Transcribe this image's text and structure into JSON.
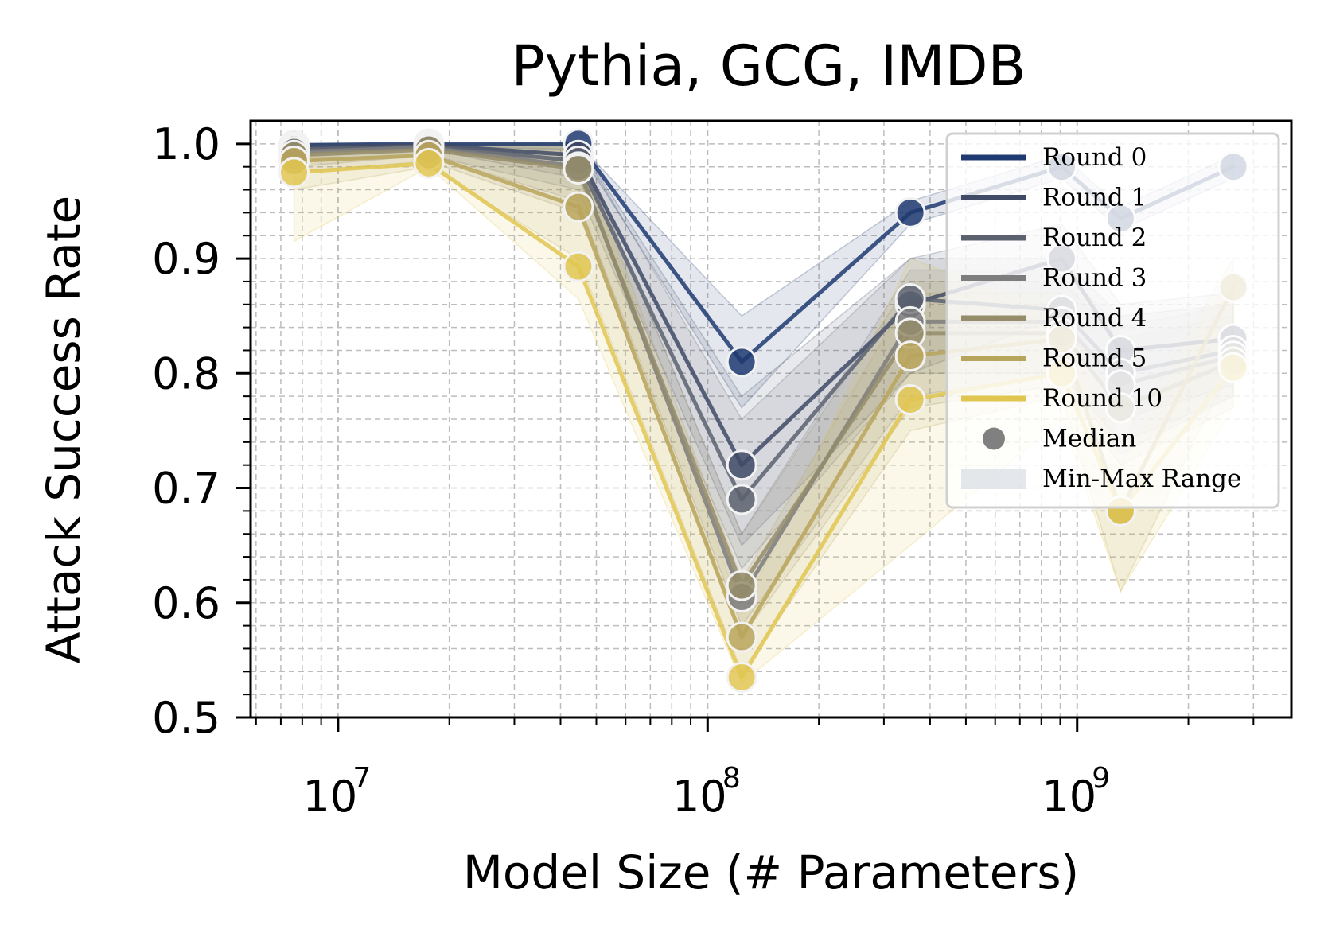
{
  "chart_data": {
    "type": "line",
    "title": "Pythia, GCG, IMDB",
    "xlabel": "Model Size (# Parameters)",
    "ylabel": "Attack Success Rate",
    "xscale": "log",
    "xlim": [
      5800000,
      3800000000
    ],
    "ylim": [
      0.5,
      1.02
    ],
    "grid": true,
    "legend_position": "upper-right",
    "x": [
      7600000,
      17600000,
      44700000,
      123700000,
      353800000,
      908800000,
      1311600000,
      2646100000
    ],
    "x_ticks": [
      {
        "value": 10000000,
        "base": "10",
        "exp": "7"
      },
      {
        "value": 100000000,
        "base": "10",
        "exp": "8"
      },
      {
        "value": 1000000000,
        "base": "10",
        "exp": "9"
      }
    ],
    "y_ticks": [
      {
        "value": 0.5,
        "label": "0.5"
      },
      {
        "value": 0.6,
        "label": "0.6"
      },
      {
        "value": 0.7,
        "label": "0.7"
      },
      {
        "value": 0.8,
        "label": "0.8"
      },
      {
        "value": 0.9,
        "label": "0.9"
      },
      {
        "value": 1.0,
        "label": "1.0"
      }
    ],
    "series": [
      {
        "name": "Round 0",
        "color": "#1f3a70",
        "alpha": 0.85,
        "values": [
          0.999,
          1.0,
          1.0,
          0.81,
          0.94,
          0.98,
          0.935,
          0.98
        ],
        "min": [
          0.995,
          0.998,
          0.995,
          0.77,
          0.93,
          0.97,
          0.925,
          0.97
        ],
        "max": [
          1.0,
          1.0,
          1.0,
          0.85,
          0.95,
          0.99,
          0.945,
          0.99
        ]
      },
      {
        "name": "Round 1",
        "color": "#3f4a66",
        "alpha": 0.85,
        "values": [
          0.997,
          0.999,
          0.99,
          0.72,
          0.86,
          0.9,
          0.82,
          0.83
        ],
        "min": [
          0.99,
          0.995,
          0.97,
          0.65,
          0.8,
          0.85,
          0.76,
          0.79
        ],
        "max": [
          1.0,
          1.0,
          1.0,
          0.78,
          0.9,
          0.93,
          0.86,
          0.87
        ]
      },
      {
        "name": "Round 2",
        "color": "#5c6170",
        "alpha": 0.85,
        "values": [
          0.995,
          0.998,
          0.985,
          0.69,
          0.865,
          0.855,
          0.8,
          0.82
        ],
        "min": [
          0.985,
          0.99,
          0.96,
          0.63,
          0.8,
          0.8,
          0.74,
          0.78
        ],
        "max": [
          1.0,
          1.0,
          1.0,
          0.76,
          0.9,
          0.9,
          0.85,
          0.86
        ]
      },
      {
        "name": "Round 3",
        "color": "#7d7d7d",
        "alpha": 0.85,
        "values": [
          0.993,
          0.997,
          0.98,
          0.605,
          0.845,
          0.845,
          0.79,
          0.815
        ],
        "min": [
          0.98,
          0.99,
          0.95,
          0.58,
          0.78,
          0.8,
          0.73,
          0.78
        ],
        "max": [
          1.0,
          1.0,
          1.0,
          0.66,
          0.89,
          0.89,
          0.84,
          0.86
        ]
      },
      {
        "name": "Round 4",
        "color": "#958c6a",
        "alpha": 0.85,
        "values": [
          0.99,
          0.995,
          0.978,
          0.615,
          0.835,
          0.835,
          0.77,
          0.81
        ],
        "min": [
          0.975,
          0.985,
          0.94,
          0.57,
          0.77,
          0.79,
          0.72,
          0.77
        ],
        "max": [
          1.0,
          1.0,
          1.0,
          0.66,
          0.88,
          0.88,
          0.83,
          0.85
        ]
      },
      {
        "name": "Round 5",
        "color": "#b8a55c",
        "alpha": 0.85,
        "values": [
          0.985,
          0.99,
          0.945,
          0.57,
          0.815,
          0.83,
          0.68,
          0.875
        ],
        "min": [
          0.96,
          0.98,
          0.9,
          0.54,
          0.75,
          0.78,
          0.61,
          0.81
        ],
        "max": [
          1.0,
          1.0,
          1.0,
          0.62,
          0.87,
          0.87,
          0.74,
          0.9
        ]
      },
      {
        "name": "Round 10",
        "color": "#e0c651",
        "alpha": 0.85,
        "values": [
          0.975,
          0.983,
          0.893,
          0.535,
          0.777,
          0.8,
          0.68,
          0.805
        ],
        "min": [
          0.915,
          0.98,
          0.865,
          0.53,
          0.65,
          0.76,
          0.61,
          0.77
        ],
        "max": [
          1.0,
          1.0,
          1.0,
          0.59,
          0.9,
          0.85,
          0.72,
          0.89
        ]
      }
    ],
    "legend": [
      {
        "label": "Round 0",
        "kind": "line",
        "color": "#1f3a70"
      },
      {
        "label": "Round 1",
        "kind": "line",
        "color": "#3f4a66"
      },
      {
        "label": "Round 2",
        "kind": "line",
        "color": "#5c6170"
      },
      {
        "label": "Round 3",
        "kind": "line",
        "color": "#7d7d7d"
      },
      {
        "label": "Round 4",
        "kind": "line",
        "color": "#958c6a"
      },
      {
        "label": "Round 5",
        "kind": "line",
        "color": "#b8a55c"
      },
      {
        "label": "Round 10",
        "kind": "line",
        "color": "#e0c651"
      },
      {
        "label": "Median",
        "kind": "marker",
        "color": "#808080"
      },
      {
        "label": "Min-Max Range",
        "kind": "patch",
        "color": "#d9dde3"
      }
    ]
  }
}
